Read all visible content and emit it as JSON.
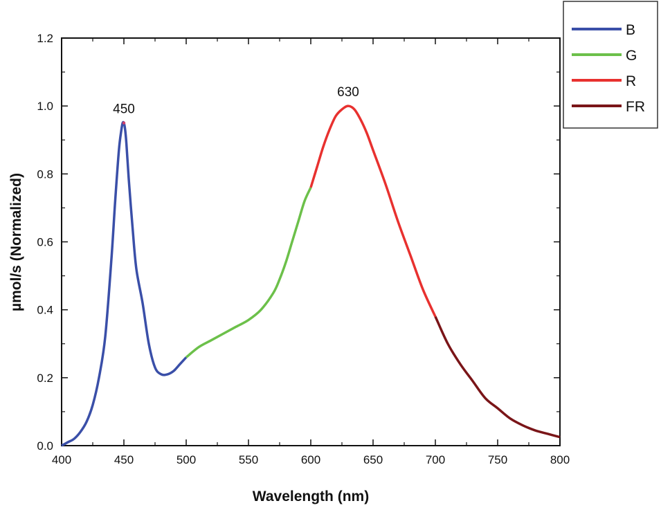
{
  "chart_data": {
    "type": "line",
    "title": "",
    "xlabel": "Wavelength (nm)",
    "ylabel": "µmol/s (Normalized)",
    "xlim": [
      400,
      800
    ],
    "ylim": [
      0.0,
      1.2
    ],
    "xticks": [
      400,
      450,
      500,
      550,
      600,
      650,
      700,
      750,
      800
    ],
    "xtick_labels": [
      "400",
      "450",
      "500",
      "550",
      "600",
      "650",
      "700",
      "750",
      "800"
    ],
    "yticks": [
      0.0,
      0.2,
      0.4,
      0.6,
      0.8,
      1.0,
      1.2
    ],
    "ytick_labels": [
      "0.0",
      "0.2",
      "0.4",
      "0.6",
      "0.8",
      "1.0",
      "1.2"
    ],
    "grid": false,
    "legend_position": "top-right outside",
    "annotations": [
      {
        "text": "450",
        "x": 450,
        "y": 0.95
      },
      {
        "text": "630",
        "x": 630,
        "y": 1.0
      }
    ],
    "series": [
      {
        "name": "B",
        "color": "#3a4fa8",
        "x": [
          400,
          405,
          410,
          415,
          420,
          425,
          430,
          435,
          440,
          443,
          446,
          448,
          449,
          450,
          451,
          452,
          454,
          457,
          460,
          465,
          470,
          475,
          480,
          485,
          490,
          495,
          500
        ],
        "y": [
          0.0,
          0.01,
          0.02,
          0.04,
          0.07,
          0.12,
          0.2,
          0.32,
          0.55,
          0.72,
          0.87,
          0.93,
          0.95,
          0.95,
          0.93,
          0.89,
          0.78,
          0.64,
          0.52,
          0.42,
          0.3,
          0.23,
          0.21,
          0.21,
          0.22,
          0.24,
          0.26
        ]
      },
      {
        "name": "G",
        "color": "#6cc04a",
        "x": [
          500,
          510,
          520,
          530,
          540,
          550,
          560,
          570,
          575,
          580,
          585,
          590,
          595,
          600
        ],
        "y": [
          0.26,
          0.29,
          0.31,
          0.33,
          0.35,
          0.37,
          0.4,
          0.45,
          0.49,
          0.54,
          0.6,
          0.66,
          0.72,
          0.76
        ]
      },
      {
        "name": "R",
        "color": "#e8312f",
        "x": [
          600,
          605,
          610,
          615,
          620,
          625,
          630,
          635,
          640,
          645,
          650,
          660,
          670,
          680,
          690,
          700
        ],
        "y": [
          0.76,
          0.82,
          0.88,
          0.93,
          0.97,
          0.99,
          1.0,
          0.99,
          0.96,
          0.92,
          0.87,
          0.77,
          0.66,
          0.56,
          0.46,
          0.38
        ]
      },
      {
        "name": "FR",
        "color": "#7a1518",
        "x": [
          700,
          710,
          720,
          730,
          740,
          750,
          760,
          770,
          780,
          790,
          800
        ],
        "y": [
          0.38,
          0.3,
          0.24,
          0.19,
          0.14,
          0.11,
          0.08,
          0.06,
          0.045,
          0.035,
          0.025
        ]
      }
    ]
  }
}
